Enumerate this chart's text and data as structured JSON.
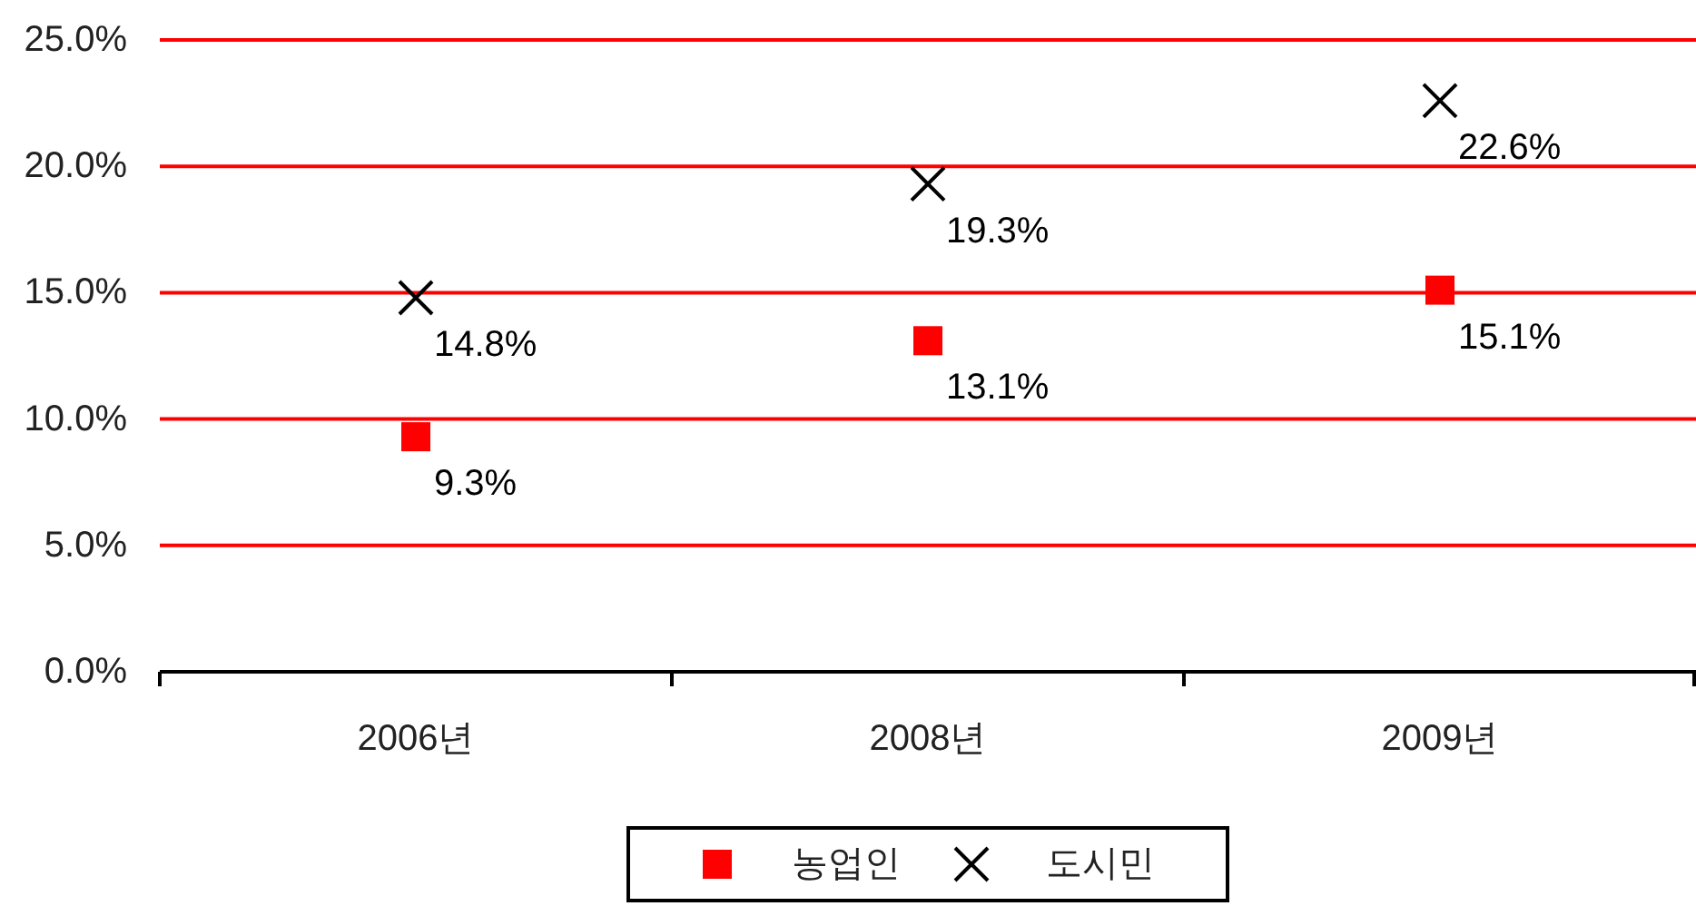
{
  "chart_data": {
    "type": "scatter",
    "categories": [
      "2006년",
      "2008년",
      "2009년"
    ],
    "series": [
      {
        "name": "농업인",
        "color": "#ff0000",
        "marker": "square",
        "values": [
          9.3,
          13.1,
          15.1
        ],
        "value_labels": [
          "9.3%",
          "13.1%",
          "15.1%"
        ]
      },
      {
        "name": "도시민",
        "color": "#000000",
        "marker": "cross",
        "values": [
          14.8,
          19.3,
          22.6
        ],
        "value_labels": [
          "14.8%",
          "19.3%",
          "22.6%"
        ]
      }
    ],
    "ylim": [
      0,
      25
    ],
    "yticks": [
      {
        "value": 0,
        "label": "0.0%"
      },
      {
        "value": 5,
        "label": "5.0%"
      },
      {
        "value": 10,
        "label": "10.0%"
      },
      {
        "value": 15,
        "label": "15.0%"
      },
      {
        "value": 20,
        "label": "20.0%"
      },
      {
        "value": 25,
        "label": "25.0%"
      }
    ],
    "grid": "y",
    "legend": "bottom"
  }
}
